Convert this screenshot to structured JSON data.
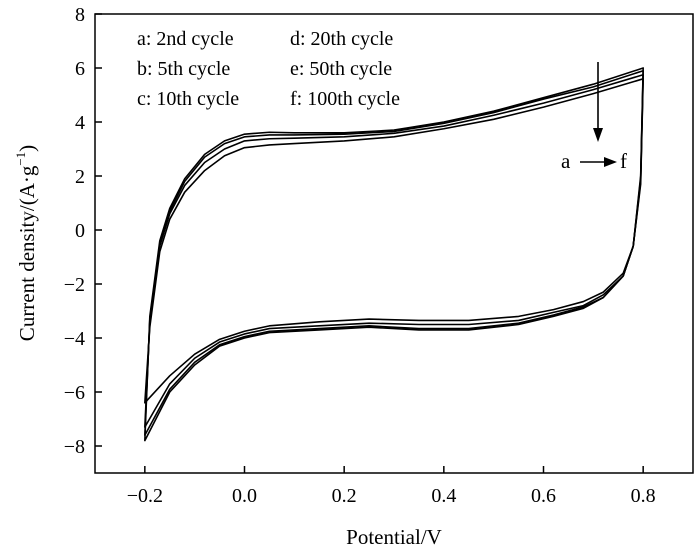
{
  "chart_data": {
    "type": "line",
    "title": "",
    "xlabel": "Potential/V",
    "ylabel": "Current density/(A·g",
    "ylabel_sup": "−1",
    "ylabel_close": ")",
    "xlim": [
      -0.3,
      0.9
    ],
    "ylim": [
      -9,
      8
    ],
    "x_ticks": [
      -0.2,
      0.0,
      0.2,
      0.4,
      0.6,
      0.8
    ],
    "x_tick_labels": [
      "−0.2",
      "0.0",
      "0.2",
      "0.4",
      "0.6",
      "0.8"
    ],
    "y_ticks": [
      -8,
      -6,
      -4,
      -2,
      0,
      2,
      4,
      6,
      8
    ],
    "y_tick_labels": [
      "−8",
      "−6",
      "−4",
      "−2",
      "0",
      "2",
      "4",
      "6",
      "8"
    ],
    "grid": false,
    "legend": {
      "position": "top-left",
      "entries": [
        "a: 2nd cycle",
        "b: 5th cycle",
        "c: 10th cycle",
        "d: 20th cycle",
        "e: 50th cycle",
        "f: 100th cycle"
      ]
    },
    "annotation": {
      "text_from": "a",
      "text_to": "f",
      "arrow": "down"
    },
    "series": [
      {
        "name": "a",
        "anodic": [
          [
            -0.2,
            -7.8
          ],
          [
            -0.19,
            -3.2
          ],
          [
            -0.17,
            -0.4
          ],
          [
            -0.15,
            0.8
          ],
          [
            -0.12,
            1.9
          ],
          [
            -0.08,
            2.8
          ],
          [
            -0.04,
            3.3
          ],
          [
            0.0,
            3.55
          ],
          [
            0.05,
            3.62
          ],
          [
            0.1,
            3.6
          ],
          [
            0.2,
            3.6
          ],
          [
            0.3,
            3.7
          ],
          [
            0.4,
            4.0
          ],
          [
            0.5,
            4.4
          ],
          [
            0.6,
            4.9
          ],
          [
            0.7,
            5.4
          ],
          [
            0.8,
            6.0
          ]
        ],
        "cathodic": [
          [
            0.8,
            6.0
          ],
          [
            0.795,
            2.0
          ],
          [
            0.78,
            -0.6
          ],
          [
            0.76,
            -1.7
          ],
          [
            0.72,
            -2.5
          ],
          [
            0.68,
            -2.9
          ],
          [
            0.62,
            -3.2
          ],
          [
            0.55,
            -3.5
          ],
          [
            0.45,
            -3.7
          ],
          [
            0.35,
            -3.7
          ],
          [
            0.25,
            -3.6
          ],
          [
            0.15,
            -3.7
          ],
          [
            0.05,
            -3.8
          ],
          [
            0.0,
            -4.0
          ],
          [
            -0.05,
            -4.3
          ],
          [
            -0.1,
            -5.0
          ],
          [
            -0.15,
            -6.0
          ],
          [
            -0.2,
            -7.8
          ]
        ]
      },
      {
        "name": "b",
        "anodic": [
          [
            -0.2,
            -7.6
          ],
          [
            -0.19,
            -3.3
          ],
          [
            -0.17,
            -0.5
          ],
          [
            -0.15,
            0.7
          ],
          [
            -0.12,
            1.8
          ],
          [
            -0.08,
            2.7
          ],
          [
            -0.04,
            3.2
          ],
          [
            0.0,
            3.45
          ],
          [
            0.05,
            3.52
          ],
          [
            0.1,
            3.52
          ],
          [
            0.2,
            3.55
          ],
          [
            0.3,
            3.65
          ],
          [
            0.4,
            3.95
          ],
          [
            0.5,
            4.35
          ],
          [
            0.6,
            4.85
          ],
          [
            0.7,
            5.3
          ],
          [
            0.8,
            5.9
          ]
        ],
        "cathodic": [
          [
            0.8,
            5.9
          ],
          [
            0.795,
            1.9
          ],
          [
            0.78,
            -0.6
          ],
          [
            0.76,
            -1.7
          ],
          [
            0.72,
            -2.5
          ],
          [
            0.68,
            -2.85
          ],
          [
            0.62,
            -3.15
          ],
          [
            0.55,
            -3.45
          ],
          [
            0.45,
            -3.65
          ],
          [
            0.35,
            -3.65
          ],
          [
            0.25,
            -3.55
          ],
          [
            0.15,
            -3.65
          ],
          [
            0.05,
            -3.75
          ],
          [
            0.0,
            -3.95
          ],
          [
            -0.05,
            -4.25
          ],
          [
            -0.1,
            -4.9
          ],
          [
            -0.15,
            -5.9
          ],
          [
            -0.2,
            -7.6
          ]
        ]
      },
      {
        "name": "c",
        "anodic": [
          [
            -0.2,
            -7.3
          ],
          [
            -0.19,
            -3.4
          ],
          [
            -0.17,
            -0.6
          ],
          [
            -0.15,
            0.6
          ],
          [
            -0.12,
            1.65
          ],
          [
            -0.08,
            2.5
          ],
          [
            -0.04,
            3.0
          ],
          [
            0.0,
            3.3
          ],
          [
            0.05,
            3.38
          ],
          [
            0.1,
            3.4
          ],
          [
            0.2,
            3.45
          ],
          [
            0.3,
            3.58
          ],
          [
            0.4,
            3.85
          ],
          [
            0.5,
            4.25
          ],
          [
            0.6,
            4.7
          ],
          [
            0.7,
            5.2
          ],
          [
            0.8,
            5.75
          ]
        ],
        "cathodic": [
          [
            0.8,
            5.75
          ],
          [
            0.795,
            1.8
          ],
          [
            0.78,
            -0.6
          ],
          [
            0.76,
            -1.7
          ],
          [
            0.72,
            -2.4
          ],
          [
            0.68,
            -2.8
          ],
          [
            0.62,
            -3.05
          ],
          [
            0.55,
            -3.35
          ],
          [
            0.45,
            -3.5
          ],
          [
            0.35,
            -3.5
          ],
          [
            0.25,
            -3.45
          ],
          [
            0.15,
            -3.55
          ],
          [
            0.05,
            -3.65
          ],
          [
            0.0,
            -3.85
          ],
          [
            -0.05,
            -4.15
          ],
          [
            -0.1,
            -4.75
          ],
          [
            -0.15,
            -5.7
          ],
          [
            -0.2,
            -7.3
          ]
        ]
      },
      {
        "name": "f",
        "anodic": [
          [
            -0.2,
            -6.4
          ],
          [
            -0.19,
            -3.6
          ],
          [
            -0.17,
            -0.8
          ],
          [
            -0.15,
            0.4
          ],
          [
            -0.12,
            1.4
          ],
          [
            -0.08,
            2.2
          ],
          [
            -0.04,
            2.75
          ],
          [
            0.0,
            3.05
          ],
          [
            0.05,
            3.15
          ],
          [
            0.1,
            3.2
          ],
          [
            0.2,
            3.3
          ],
          [
            0.3,
            3.45
          ],
          [
            0.4,
            3.75
          ],
          [
            0.5,
            4.1
          ],
          [
            0.6,
            4.55
          ],
          [
            0.7,
            5.05
          ],
          [
            0.8,
            5.6
          ]
        ],
        "cathodic": [
          [
            0.8,
            5.6
          ],
          [
            0.795,
            1.7
          ],
          [
            0.78,
            -0.6
          ],
          [
            0.76,
            -1.6
          ],
          [
            0.72,
            -2.3
          ],
          [
            0.68,
            -2.65
          ],
          [
            0.62,
            -2.95
          ],
          [
            0.55,
            -3.2
          ],
          [
            0.45,
            -3.35
          ],
          [
            0.35,
            -3.35
          ],
          [
            0.25,
            -3.3
          ],
          [
            0.15,
            -3.4
          ],
          [
            0.05,
            -3.55
          ],
          [
            0.0,
            -3.75
          ],
          [
            -0.05,
            -4.05
          ],
          [
            -0.1,
            -4.6
          ],
          [
            -0.15,
            -5.4
          ],
          [
            -0.2,
            -6.4
          ]
        ]
      }
    ]
  }
}
